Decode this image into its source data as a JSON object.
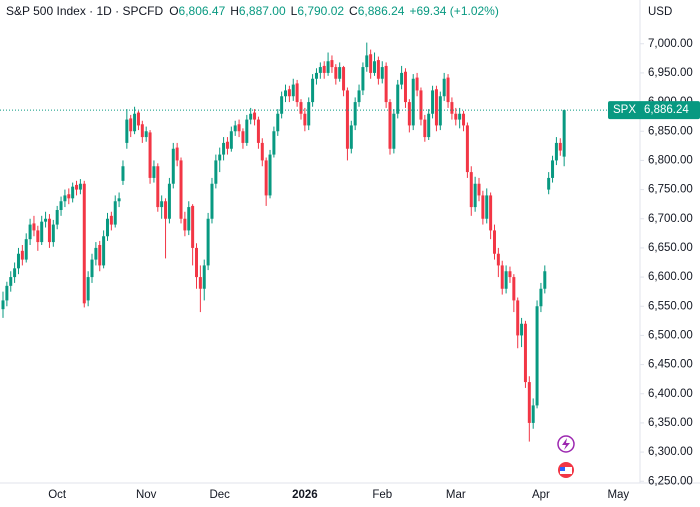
{
  "chart_data": {
    "type": "candlestick",
    "header": {
      "symbol": "S&P 500 Index · 1D · SPCFD",
      "ohlc_labels": [
        {
          "key": "O",
          "text": "6,806.47"
        },
        {
          "key": "H",
          "text": "6,887.00"
        },
        {
          "key": "L",
          "text": "6,790.02"
        },
        {
          "key": "C",
          "text": "6,886.24"
        }
      ],
      "change": "+69.34 (+1.02%)"
    },
    "currency": "USD",
    "last_price": {
      "name": "SPX",
      "value": 6886.24,
      "label": "6,886.24"
    },
    "up_color": "#089981",
    "down_color": "#f23645",
    "ylim": [
      6247,
      7075
    ],
    "yticks": [
      {
        "value": 6250,
        "label": "6,250.00"
      },
      {
        "value": 6300,
        "label": "6,300.00"
      },
      {
        "value": 6350,
        "label": "6,350.00"
      },
      {
        "value": 6400,
        "label": "6,400.00"
      },
      {
        "value": 6450,
        "label": "6,450.00"
      },
      {
        "value": 6500,
        "label": "6,500.00"
      },
      {
        "value": 6550,
        "label": "6,550.00"
      },
      {
        "value": 6600,
        "label": "6,600.00"
      },
      {
        "value": 6650,
        "label": "6,650.00"
      },
      {
        "value": 6700,
        "label": "6,700.00"
      },
      {
        "value": 6750,
        "label": "6,750.00"
      },
      {
        "value": 6800,
        "label": "6,800.00"
      },
      {
        "value": 6850,
        "label": "6,850.00"
      },
      {
        "value": 6900,
        "label": "6,900.00"
      },
      {
        "value": 6950,
        "label": "6,950.00"
      },
      {
        "value": 7000,
        "label": "7,000.00"
      }
    ],
    "grid": false,
    "categories": [
      null,
      null,
      null,
      null,
      null,
      null,
      null,
      null,
      null,
      null,
      null,
      null,
      null,
      null,
      "Oct",
      null,
      null,
      null,
      null,
      null,
      null,
      null,
      null,
      null,
      null,
      null,
      null,
      null,
      null,
      null,
      null,
      null,
      null,
      null,
      null,
      null,
      null,
      "Nov",
      null,
      null,
      null,
      null,
      null,
      null,
      null,
      null,
      null,
      null,
      null,
      null,
      null,
      null,
      null,
      null,
      null,
      null,
      "Dec",
      null,
      null,
      null,
      null,
      null,
      null,
      null,
      null,
      null,
      null,
      null,
      null,
      null,
      null,
      null,
      null,
      null,
      null,
      null,
      null,
      null,
      "2026",
      null,
      null,
      null,
      null,
      null,
      null,
      null,
      null,
      null,
      null,
      null,
      null,
      null,
      null,
      null,
      null,
      null,
      null,
      null,
      "Feb",
      null,
      null,
      null,
      null,
      null,
      null,
      null,
      null,
      null,
      null,
      null,
      null,
      null,
      null,
      null,
      null,
      null,
      null,
      "Mar",
      null,
      null,
      null,
      null,
      null,
      null,
      null,
      null,
      null,
      null,
      null,
      null,
      null,
      null,
      null,
      null,
      null,
      null,
      null,
      null,
      null,
      "Apr",
      null,
      null,
      null,
      null,
      null,
      null,
      null,
      null,
      null,
      null,
      null,
      null,
      null,
      null,
      null,
      null,
      null,
      null,
      null,
      "May"
    ],
    "candles": [
      [
        6545,
        6575,
        6530,
        6560
      ],
      [
        6560,
        6592,
        6550,
        6585
      ],
      [
        6585,
        6610,
        6575,
        6600
      ],
      [
        6600,
        6625,
        6590,
        6615
      ],
      [
        6615,
        6650,
        6605,
        6640
      ],
      [
        6645,
        6655,
        6620,
        6630
      ],
      [
        6630,
        6675,
        6625,
        6665
      ],
      [
        6665,
        6700,
        6655,
        6690
      ],
      [
        6692,
        6705,
        6670,
        6680
      ],
      [
        6680,
        6688,
        6645,
        6660
      ],
      [
        6660,
        6705,
        6655,
        6695
      ],
      [
        6695,
        6712,
        6685,
        6700
      ],
      [
        6700,
        6708,
        6650,
        6660
      ],
      [
        6660,
        6698,
        6652,
        6690
      ],
      [
        6690,
        6722,
        6682,
        6715
      ],
      [
        6715,
        6738,
        6705,
        6730
      ],
      [
        6730,
        6750,
        6720,
        6740
      ],
      [
        6742,
        6752,
        6725,
        6735
      ],
      [
        6735,
        6762,
        6728,
        6755
      ],
      [
        6758,
        6765,
        6740,
        6750
      ],
      [
        6750,
        6768,
        6742,
        6760
      ],
      [
        6760,
        6765,
        6548,
        6555
      ],
      [
        6560,
        6610,
        6550,
        6600
      ],
      [
        6600,
        6640,
        6590,
        6630
      ],
      [
        6630,
        6660,
        6620,
        6650
      ],
      [
        6655,
        6662,
        6610,
        6620
      ],
      [
        6620,
        6680,
        6615,
        6670
      ],
      [
        6670,
        6710,
        6662,
        6700
      ],
      [
        6705,
        6712,
        6680,
        6690
      ],
      [
        6690,
        6740,
        6685,
        6730
      ],
      [
        6730,
        6745,
        6720,
        6735
      ],
      [
        6765,
        6800,
        6758,
        6790
      ],
      [
        6830,
        6888,
        6820,
        6870
      ],
      [
        6872,
        6878,
        6840,
        6850
      ],
      [
        6850,
        6892,
        6845,
        6880
      ],
      [
        6882,
        6885,
        6852,
        6860
      ],
      [
        6862,
        6868,
        6830,
        6840
      ],
      [
        6840,
        6858,
        6832,
        6850
      ],
      [
        6848,
        6852,
        6760,
        6770
      ],
      [
        6770,
        6800,
        6762,
        6790
      ],
      [
        6790,
        6795,
        6712,
        6720
      ],
      [
        6720,
        6740,
        6700,
        6730
      ],
      [
        6730,
        6735,
        6632,
        6700
      ],
      [
        6700,
        6770,
        6692,
        6760
      ],
      [
        6760,
        6830,
        6752,
        6820
      ],
      [
        6822,
        6830,
        6790,
        6800
      ],
      [
        6800,
        6805,
        6692,
        6700
      ],
      [
        6700,
        6712,
        6670,
        6680
      ],
      [
        6680,
        6730,
        6672,
        6720
      ],
      [
        6722,
        6725,
        6620,
        6650
      ],
      [
        6650,
        6658,
        6580,
        6600
      ],
      [
        6600,
        6620,
        6540,
        6580
      ],
      [
        6580,
        6630,
        6560,
        6620
      ],
      [
        6620,
        6710,
        6612,
        6700
      ],
      [
        6700,
        6770,
        6692,
        6760
      ],
      [
        6760,
        6810,
        6752,
        6800
      ],
      [
        6800,
        6822,
        6780,
        6810
      ],
      [
        6810,
        6840,
        6800,
        6830
      ],
      [
        6832,
        6840,
        6810,
        6820
      ],
      [
        6820,
        6858,
        6815,
        6850
      ],
      [
        6850,
        6868,
        6842,
        6860
      ],
      [
        6862,
        6870,
        6840,
        6850
      ],
      [
        6850,
        6855,
        6820,
        6830
      ],
      [
        6830,
        6878,
        6825,
        6870
      ],
      [
        6870,
        6890,
        6862,
        6880
      ],
      [
        6882,
        6888,
        6860,
        6870
      ],
      [
        6870,
        6875,
        6820,
        6830
      ],
      [
        6830,
        6838,
        6790,
        6800
      ],
      [
        6800,
        6805,
        6722,
        6740
      ],
      [
        6740,
        6818,
        6735,
        6810
      ],
      [
        6810,
        6858,
        6805,
        6850
      ],
      [
        6850,
        6888,
        6842,
        6880
      ],
      [
        6880,
        6918,
        6872,
        6910
      ],
      [
        6910,
        6930,
        6900,
        6920
      ],
      [
        6922,
        6928,
        6900,
        6910
      ],
      [
        6910,
        6940,
        6902,
        6930
      ],
      [
        6932,
        6938,
        6892,
        6900
      ],
      [
        6900,
        6905,
        6870,
        6880
      ],
      [
        6880,
        6890,
        6850,
        6860
      ],
      [
        6860,
        6908,
        6852,
        6900
      ],
      [
        6900,
        6948,
        6892,
        6940
      ],
      [
        6940,
        6958,
        6930,
        6950
      ],
      [
        6950,
        6968,
        6940,
        6960
      ],
      [
        6962,
        6970,
        6940,
        6950
      ],
      [
        6950,
        6985,
        6945,
        6970
      ],
      [
        6972,
        6980,
        6950,
        6960
      ],
      [
        6960,
        6965,
        6930,
        6940
      ],
      [
        6940,
        6968,
        6935,
        6960
      ],
      [
        6960,
        6962,
        6910,
        6920
      ],
      [
        6920,
        6925,
        6800,
        6820
      ],
      [
        6820,
        6868,
        6812,
        6860
      ],
      [
        6860,
        6908,
        6852,
        6900
      ],
      [
        6900,
        6930,
        6892,
        6920
      ],
      [
        6920,
        6968,
        6912,
        6960
      ],
      [
        6960,
        7002,
        6952,
        6980
      ],
      [
        6982,
        6990,
        6940,
        6950
      ],
      [
        6950,
        6985,
        6945,
        6970
      ],
      [
        6972,
        6978,
        6930,
        6940
      ],
      [
        6940,
        6970,
        6932,
        6960
      ],
      [
        6962,
        6968,
        6890,
        6900
      ],
      [
        6900,
        6905,
        6810,
        6820
      ],
      [
        6820,
        6888,
        6812,
        6880
      ],
      [
        6880,
        6938,
        6872,
        6930
      ],
      [
        6930,
        6962,
        6922,
        6950
      ],
      [
        6952,
        6958,
        6890,
        6900
      ],
      [
        6900,
        6905,
        6848,
        6860
      ],
      [
        6860,
        6948,
        6852,
        6940
      ],
      [
        6942,
        6950,
        6910,
        6920
      ],
      [
        6920,
        6925,
        6860,
        6870
      ],
      [
        6870,
        6878,
        6832,
        6840
      ],
      [
        6840,
        6888,
        6835,
        6880
      ],
      [
        6880,
        6928,
        6872,
        6920
      ],
      [
        6922,
        6928,
        6850,
        6860
      ],
      [
        6860,
        6918,
        6852,
        6910
      ],
      [
        6910,
        6950,
        6902,
        6940
      ],
      [
        6942,
        6948,
        6890,
        6900
      ],
      [
        6900,
        6908,
        6870,
        6880
      ],
      [
        6880,
        6890,
        6860,
        6870
      ],
      [
        6870,
        6890,
        6855,
        6880
      ],
      [
        6880,
        6885,
        6850,
        6860
      ],
      [
        6860,
        6865,
        6770,
        6780
      ],
      [
        6780,
        6790,
        6705,
        6720
      ],
      [
        6720,
        6772,
        6712,
        6760
      ],
      [
        6760,
        6770,
        6730,
        6740
      ],
      [
        6740,
        6748,
        6690,
        6700
      ],
      [
        6700,
        6752,
        6692,
        6740
      ],
      [
        6740,
        6745,
        6665,
        6680
      ],
      [
        6680,
        6690,
        6630,
        6640
      ],
      [
        6640,
        6650,
        6600,
        6620
      ],
      [
        6620,
        6628,
        6570,
        6580
      ],
      [
        6580,
        6620,
        6572,
        6610
      ],
      [
        6610,
        6618,
        6590,
        6600
      ],
      [
        6600,
        6605,
        6540,
        6560
      ],
      [
        6560,
        6565,
        6478,
        6500
      ],
      [
        6500,
        6530,
        6480,
        6520
      ],
      [
        6520,
        6525,
        6410,
        6420
      ],
      [
        6420,
        6430,
        6318,
        6350
      ],
      [
        6350,
        6392,
        6340,
        6380
      ],
      [
        6380,
        6560,
        6375,
        6550
      ],
      [
        6550,
        6590,
        6540,
        6580
      ],
      [
        6580,
        6620,
        6572,
        6610
      ],
      [
        6750,
        6780,
        6742,
        6770
      ],
      [
        6770,
        6808,
        6762,
        6800
      ],
      [
        6800,
        6840,
        6792,
        6830
      ],
      [
        6830,
        6838,
        6808,
        6816.9
      ],
      [
        6806.47,
        6887,
        6790.02,
        6886.24
      ]
    ]
  }
}
